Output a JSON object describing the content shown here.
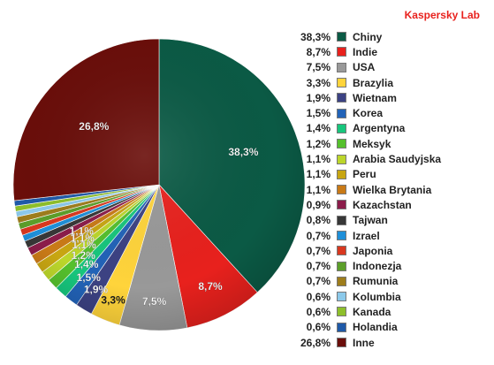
{
  "brand": "Kaspersky Lab",
  "chart_data": {
    "type": "pie",
    "categories": [
      "Chiny",
      "Indie",
      "USA",
      "Brazylia",
      "Wietnam",
      "Korea",
      "Argentyna",
      "Meksyk",
      "Arabia Saudyjska",
      "Peru",
      "Wielka Brytania",
      "Kazachstan",
      "Tajwan",
      "Izrael",
      "Japonia",
      "Indonezja",
      "Rumunia",
      "Kolumbia",
      "Kanada",
      "Holandia",
      "Inne"
    ],
    "values": [
      38.3,
      8.7,
      7.5,
      3.3,
      1.9,
      1.5,
      1.4,
      1.2,
      1.1,
      1.1,
      1.1,
      0.9,
      0.8,
      0.7,
      0.7,
      0.7,
      0.7,
      0.6,
      0.6,
      0.6,
      26.8
    ],
    "labels": [
      "38,3%",
      "8,7%",
      "7,5%",
      "3,3%",
      "1,9%",
      "1,5%",
      "1,4%",
      "1,2%",
      "1,1%",
      "1,1%",
      "1,1%",
      "0,9%",
      "0,8%",
      "0,7%",
      "0,7%",
      "0,7%",
      "0,7%",
      "0,6%",
      "0,6%",
      "0,6%",
      "26,8%"
    ],
    "colors": [
      "#0b5a45",
      "#e8211d",
      "#999999",
      "#ffd43b",
      "#3c4283",
      "#2263b8",
      "#17c67d",
      "#55c02d",
      "#bcd62b",
      "#c8a612",
      "#c97a17",
      "#8b1c4a",
      "#373737",
      "#1f8fd8",
      "#d9381f",
      "#5c9f2a",
      "#9e7d1c",
      "#8cc9ea",
      "#8ebf2b",
      "#1f5aa8",
      "#6a0e0a"
    ],
    "slice_labels": [
      {
        "index": 0,
        "text": "38,3%"
      },
      {
        "index": 1,
        "text": "8,7%"
      },
      {
        "index": 2,
        "text": "7,5%"
      },
      {
        "index": 3,
        "text": "3,3%"
      },
      {
        "index": 4,
        "text": "1,9%"
      },
      {
        "index": 5,
        "text": "1,5%"
      },
      {
        "index": 6,
        "text": "1,4%"
      },
      {
        "index": 7,
        "text": "1,2%"
      },
      {
        "index": 8,
        "text": "1,1%"
      },
      {
        "index": 9,
        "text": "1,1%"
      },
      {
        "index": 10,
        "text": "1,1%"
      },
      {
        "index": 20,
        "text": "26,8%"
      }
    ],
    "start": "12 o'clock",
    "direction": "clockwise",
    "legend_position": "right"
  }
}
